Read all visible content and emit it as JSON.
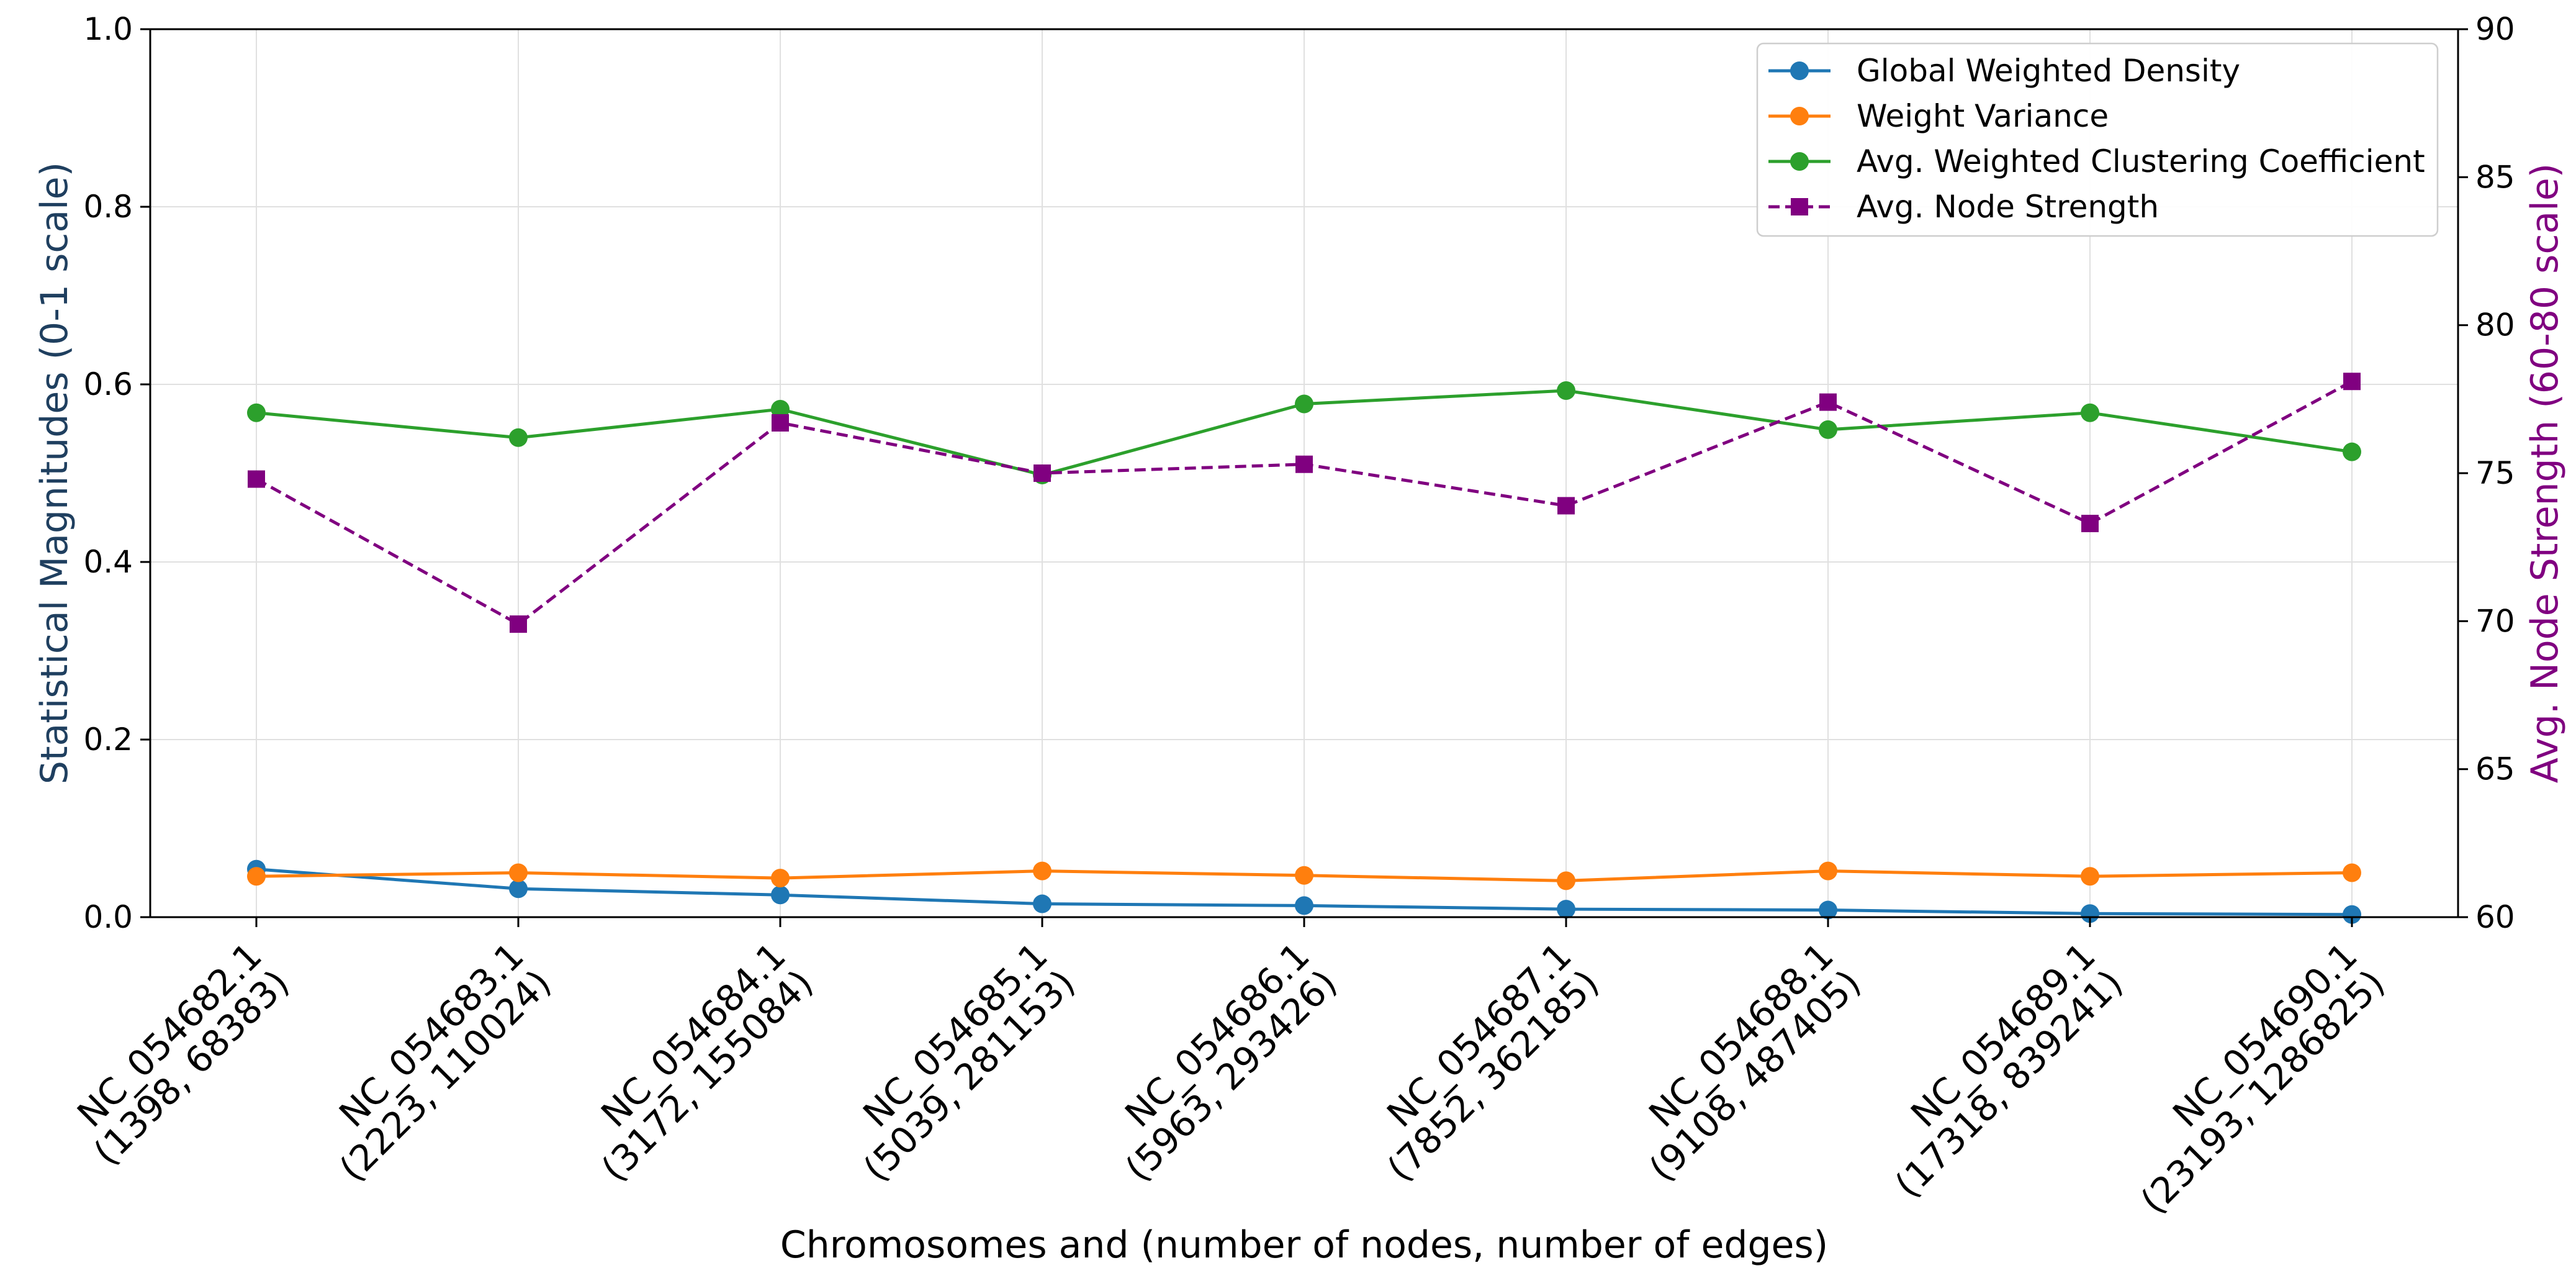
{
  "chart_data": {
    "type": "line",
    "categories": [
      [
        "NC_054682.1",
        "(1398, 68383)"
      ],
      [
        "NC_054683.1",
        "(2223, 110024)"
      ],
      [
        "NC_054684.1",
        "(3172, 155084)"
      ],
      [
        "NC_054685.1",
        "(5039, 281153)"
      ],
      [
        "NC_054686.1",
        "(5963, 293426)"
      ],
      [
        "NC_054687.1",
        "(7852, 362185)"
      ],
      [
        "NC_054688.1",
        "(9108, 487405)"
      ],
      [
        "NC_054689.1",
        "(17318, 839241)"
      ],
      [
        "NC_054690.1",
        "(23193, 1286825)"
      ]
    ],
    "xlabel": "Chromosomes and (number of nodes, number of edges)",
    "ylabel_left": "Statistical Magnitudes (0-1 scale)",
    "ylabel_right": "Avg. Node Strength (60-80 scale)",
    "ylim_left": [
      0,
      1.0
    ],
    "ylim_right": [
      60,
      90
    ],
    "yticks_left": [
      "0.0",
      "0.2",
      "0.4",
      "0.6",
      "0.8",
      "1.0"
    ],
    "yticks_right": [
      "60",
      "65",
      "70",
      "75",
      "80",
      "85",
      "90"
    ],
    "grid": true,
    "legend_position": "top-right",
    "series": [
      {
        "name": "Global Weighted Density",
        "axis": "left",
        "color": "#1f77b4",
        "marker": "circle",
        "dashed": false,
        "values": [
          0.054,
          0.032,
          0.025,
          0.015,
          0.013,
          0.009,
          0.008,
          0.004,
          0.003
        ]
      },
      {
        "name": "Weight Variance",
        "axis": "left",
        "color": "#ff7f0e",
        "marker": "circle",
        "dashed": false,
        "values": [
          0.046,
          0.05,
          0.044,
          0.052,
          0.047,
          0.041,
          0.052,
          0.046,
          0.05
        ]
      },
      {
        "name": "Avg. Weighted Clustering Coefficient",
        "axis": "left",
        "color": "#2ca02c",
        "marker": "circle",
        "dashed": false,
        "values": [
          0.568,
          0.54,
          0.572,
          0.498,
          0.578,
          0.593,
          0.549,
          0.568,
          0.524
        ]
      },
      {
        "name": "Avg. Node Strength",
        "axis": "right",
        "color": "#800080",
        "marker": "square",
        "dashed": true,
        "values": [
          74.8,
          69.9,
          76.7,
          75.0,
          75.3,
          73.9,
          77.4,
          73.3,
          78.1
        ]
      }
    ],
    "colors": {
      "left_axis_label": "#1f3f5f",
      "right_axis_label": "#800080"
    }
  }
}
